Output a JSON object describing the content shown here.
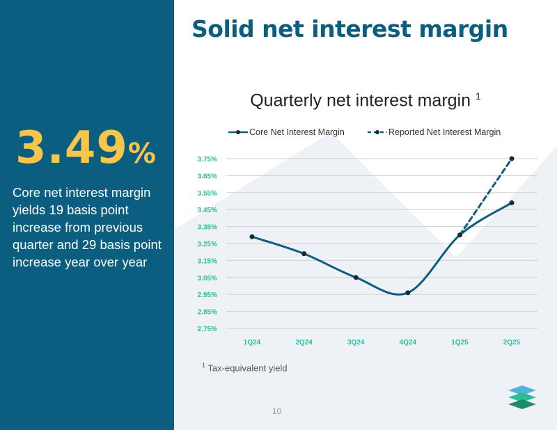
{
  "slide": {
    "title": "Solid net interest margin",
    "page_number": "10",
    "footnote_marker": "1",
    "footnote_text": "Tax-equivalent yield"
  },
  "highlight": {
    "value": "3.49",
    "unit": "%",
    "description": "Core net interest margin yields 19 basis point increase from previous quarter and 29 basis point increase year over year"
  },
  "colors": {
    "panel": "#0b5e80",
    "accent": "#f6c54b",
    "line": "#0b5e80",
    "tick": "#2bbd96",
    "logo": [
      "#4fb3d9",
      "#2bbd96",
      "#1e8a6a"
    ]
  },
  "chart_data": {
    "type": "line",
    "title": "Quarterly net interest margin",
    "title_superscript": "1",
    "categories": [
      "1Q24",
      "2Q24",
      "3Q24",
      "4Q24",
      "1Q25",
      "2Q25"
    ],
    "ylim": [
      2.75,
      3.75
    ],
    "yticks": [
      "3.75%",
      "3.65%",
      "3.55%",
      "3.45%",
      "3.35%",
      "3.25%",
      "3.15%",
      "3.05%",
      "2.95%",
      "2.85%",
      "2.75%"
    ],
    "series": [
      {
        "name": "Core Net Interest Margin",
        "style": "solid",
        "values": [
          3.29,
          3.19,
          3.05,
          2.96,
          3.3,
          3.49
        ]
      },
      {
        "name": "Reported Net Interest Margin",
        "style": "dashed",
        "values": [
          null,
          null,
          null,
          null,
          3.3,
          3.75
        ]
      }
    ],
    "legend_position": "top",
    "grid": true,
    "xlabel": "",
    "ylabel": ""
  }
}
